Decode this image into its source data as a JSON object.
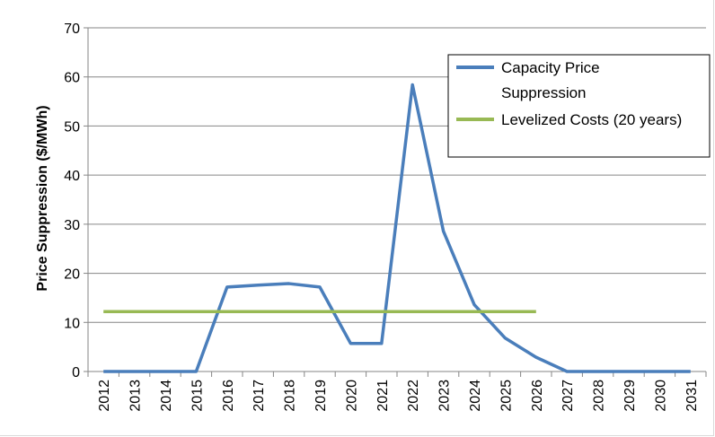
{
  "chart_data": {
    "type": "line",
    "title": "",
    "xlabel": "",
    "ylabel": "Price Suppression ($/MWh)",
    "categories": [
      "2012",
      "2013",
      "2014",
      "2015",
      "2016",
      "2017",
      "2018",
      "2019",
      "2020",
      "2021",
      "2022",
      "2023",
      "2024",
      "2025",
      "2026",
      "2027",
      "2028",
      "2029",
      "2030",
      "2031"
    ],
    "ylim": [
      0,
      70
    ],
    "yticks": [
      0,
      10,
      20,
      30,
      40,
      50,
      60,
      70
    ],
    "grid": true,
    "legend_position": "top-right",
    "series": [
      {
        "name": "Capacity Price Suppression",
        "name_lines": [
          "Capacity Price",
          "Suppression"
        ],
        "color": "#4a7ebb",
        "values": [
          0,
          0,
          0,
          0,
          17.2,
          17.6,
          17.9,
          17.2,
          5.7,
          5.7,
          58.4,
          28.6,
          13.6,
          6.8,
          2.9,
          0,
          0,
          0,
          0,
          0
        ]
      },
      {
        "name": "Levelized Costs (20 years)",
        "color": "#98b954",
        "values": [
          12.2,
          12.2,
          12.2,
          12.2,
          12.2,
          12.2,
          12.2,
          12.2,
          12.2,
          12.2,
          12.2,
          12.2,
          12.2,
          12.2,
          12.2,
          null,
          null,
          null,
          null,
          null
        ]
      }
    ]
  }
}
